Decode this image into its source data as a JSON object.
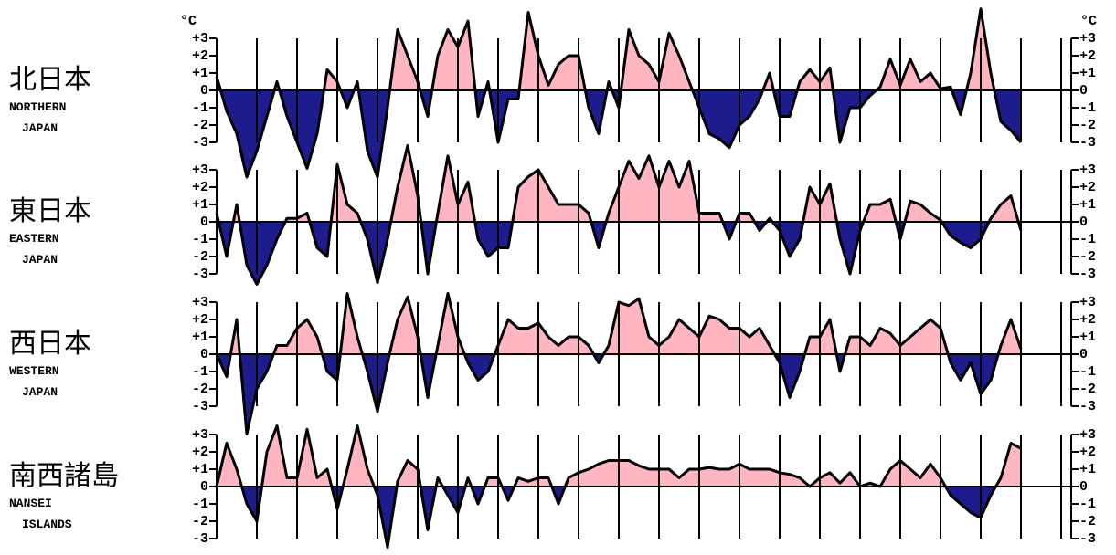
{
  "chart_data": [
    {
      "type": "area",
      "title": "北日本",
      "subtitle_lines": [
        "NORTHERN",
        "JAPAN"
      ],
      "unit": "°C",
      "pos_color": "#ffb6c1",
      "neg_color": "#1c1c8c",
      "xlim": [
        0,
        85
      ],
      "xticks": [
        0,
        4,
        8,
        12,
        16,
        20,
        24,
        28,
        32,
        36,
        40,
        44,
        48,
        52,
        56,
        60,
        64,
        68,
        72,
        76,
        80,
        84
      ],
      "ylim": [
        -3.5,
        3.5
      ],
      "yticks": [
        {
          "value": 3,
          "label": "+3"
        },
        {
          "value": 2,
          "label": "+2"
        },
        {
          "value": 1,
          "label": "+1"
        },
        0,
        -1,
        -2,
        -3
      ],
      "values": [
        0.8,
        -1.2,
        -2.5,
        -5.0,
        -3.5,
        -1.5,
        0.5,
        -1.5,
        -3.0,
        -4.5,
        -2.5,
        1.2,
        0.5,
        -1.0,
        0.5,
        -3.5,
        -5.0,
        -1.0,
        3.5,
        2.0,
        0.5,
        -1.5,
        2.0,
        3.5,
        2.5,
        4.0,
        -1.5,
        0.5,
        -3.0,
        -0.5,
        -0.5,
        4.5,
        2.0,
        0.3,
        1.5,
        2.0,
        2.0,
        -1.0,
        -2.5,
        0.5,
        -1.0,
        3.5,
        2.0,
        1.5,
        0.5,
        3.3,
        2.0,
        0.5,
        -1.0,
        -2.5,
        -2.8,
        -3.3,
        -2.0,
        -1.5,
        -0.5,
        1.0,
        -1.5,
        -1.5,
        0.5,
        1.2,
        0.5,
        1.3,
        -3.0,
        -1.0,
        -1.0,
        -0.3,
        0.2,
        1.8,
        0.3,
        1.8,
        0.5,
        1.0,
        0.1,
        0.2,
        -1.4,
        1.0,
        4.7,
        1.0,
        -1.8,
        -2.3,
        -3.0
      ]
    },
    {
      "type": "area",
      "title": "東日本",
      "subtitle_lines": [
        "EASTERN",
        "JAPAN"
      ],
      "pos_color": "#ffb6c1",
      "neg_color": "#1c1c8c",
      "xlim": [
        0,
        85
      ],
      "xticks": [
        0,
        4,
        8,
        12,
        16,
        20,
        24,
        28,
        32,
        36,
        40,
        44,
        48,
        52,
        56,
        60,
        64,
        68,
        72,
        76,
        80,
        84
      ],
      "ylim": [
        -3.5,
        3.5
      ],
      "yticks": [
        {
          "value": 3,
          "label": "+3"
        },
        {
          "value": 2,
          "label": "+2"
        },
        {
          "value": 1,
          "label": "+1"
        },
        0,
        -1,
        -2,
        -3
      ],
      "values": [
        0.5,
        -2.0,
        1.0,
        -2.5,
        -3.6,
        -2.5,
        -1.0,
        0.2,
        0.2,
        0.5,
        -1.5,
        -2.0,
        3.3,
        1.0,
        0.5,
        -1.0,
        -3.5,
        -1.0,
        2.0,
        4.4,
        1.5,
        -3.0,
        0.5,
        3.8,
        1.0,
        2.3,
        -1.0,
        -2.0,
        -1.5,
        -1.5,
        2.0,
        2.6,
        3.0,
        2.0,
        1.0,
        1.0,
        1.0,
        0.5,
        -1.5,
        0.5,
        2.0,
        3.5,
        2.5,
        3.8,
        2.0,
        3.5,
        2.0,
        3.5,
        0.5,
        0.5,
        0.5,
        -1.0,
        0.5,
        0.5,
        -0.5,
        0.2,
        -0.5,
        -2.0,
        -1.0,
        2.0,
        1.0,
        2.2,
        -1.0,
        -3.0,
        -0.5,
        1.0,
        1.0,
        1.3,
        -1.0,
        1.2,
        1.0,
        0.5,
        0.1,
        -0.8,
        -1.2,
        -1.5,
        -1.0,
        0.2,
        1.0,
        1.5,
        -0.5
      ]
    },
    {
      "type": "area",
      "title": "西日本",
      "subtitle_lines": [
        "WESTERN",
        "JAPAN"
      ],
      "pos_color": "#ffb6c1",
      "neg_color": "#1c1c8c",
      "xlim": [
        0,
        85
      ],
      "xticks": [
        0,
        4,
        8,
        12,
        16,
        20,
        24,
        28,
        32,
        36,
        40,
        44,
        48,
        52,
        56,
        60,
        64,
        68,
        72,
        76,
        80,
        84
      ],
      "ylim": [
        -3.5,
        3.5
      ],
      "yticks": [
        {
          "value": 3,
          "label": "+3"
        },
        {
          "value": 2,
          "label": "+2"
        },
        {
          "value": 1,
          "label": "+1"
        },
        0,
        -1,
        -2,
        -3
      ],
      "values": [
        0,
        -1.3,
        2.0,
        -4.6,
        -2.0,
        -1.0,
        0.5,
        0.5,
        1.5,
        2.0,
        1.0,
        -1.0,
        -1.5,
        3.5,
        1.0,
        -1.0,
        -3.3,
        -0.5,
        2.0,
        3.3,
        1.0,
        -2.5,
        0.5,
        3.5,
        1.0,
        -0.5,
        -1.5,
        -1.0,
        0.5,
        2.0,
        1.5,
        1.5,
        1.8,
        1.0,
        0.5,
        1.0,
        1.0,
        0.5,
        -0.5,
        0.5,
        3.0,
        2.8,
        3.2,
        1.0,
        0.5,
        1.0,
        2.0,
        1.5,
        1.0,
        2.2,
        2.0,
        1.5,
        1.5,
        1.0,
        1.5,
        0.5,
        -0.5,
        -2.5,
        -1.0,
        1.0,
        1.0,
        2.0,
        -1.0,
        1.0,
        1.0,
        0.5,
        1.5,
        1.2,
        0.5,
        1.0,
        1.5,
        2.0,
        1.5,
        -0.5,
        -1.5,
        -0.5,
        -2.3,
        -1.5,
        0.5,
        2.0,
        0.3
      ]
    },
    {
      "type": "area",
      "title": "南西諸島",
      "subtitle_lines": [
        "NANSEI",
        "ISLANDS"
      ],
      "pos_color": "#ffb6c1",
      "neg_color": "#1c1c8c",
      "xlim": [
        0,
        85
      ],
      "xticks": [
        0,
        4,
        8,
        12,
        16,
        20,
        24,
        28,
        32,
        36,
        40,
        44,
        48,
        52,
        56,
        60,
        64,
        68,
        72,
        76,
        80,
        84
      ],
      "ylim": [
        -3.5,
        3.5
      ],
      "yticks": [
        {
          "value": 3,
          "label": "+3"
        },
        {
          "value": 2,
          "label": "+2"
        },
        {
          "value": 1,
          "label": "+1"
        },
        0,
        -1,
        -2,
        -3
      ],
      "values": [
        0,
        2.5,
        1.0,
        -1.0,
        -2.0,
        2.0,
        3.5,
        0.5,
        0.5,
        3.3,
        0.5,
        1.0,
        -1.3,
        1.0,
        3.5,
        1.0,
        -0.5,
        -3.5,
        0.3,
        1.5,
        1.0,
        -2.5,
        0.5,
        -0.5,
        -1.5,
        0.5,
        -1.0,
        0.5,
        0.5,
        -0.8,
        0.5,
        0.3,
        0.5,
        0.5,
        -1.0,
        0.5,
        0.8,
        1.0,
        1.3,
        1.5,
        1.5,
        1.5,
        1.2,
        1.0,
        1.0,
        1.0,
        0.5,
        1.0,
        1.0,
        1.1,
        1.0,
        1.0,
        1.3,
        1.0,
        1.0,
        1.0,
        0.8,
        0.7,
        0.5,
        0,
        0.5,
        0.8,
        0.2,
        0.8,
        0,
        0.2,
        0,
        1.0,
        1.5,
        1.0,
        0.5,
        1.3,
        0.5,
        -0.5,
        -1.0,
        -1.5,
        -1.8,
        -0.5,
        0.5,
        2.5,
        2.2
      ]
    }
  ]
}
